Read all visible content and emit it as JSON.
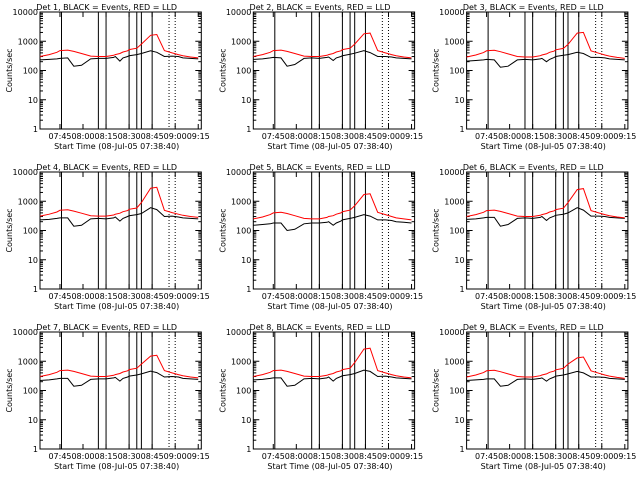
{
  "chart_data": [
    {
      "type": "line",
      "title": "Det 1, BLACK = Events, RED = LLD",
      "xlabel": "Start Time (08-Jul-05 07:38:40)",
      "ylabel": "Counts/sec",
      "x_ticks": [
        "07:45",
        "08:00",
        "08:15",
        "08:30",
        "08:45",
        "09:00",
        "09:15"
      ],
      "y_ticks": [
        "1",
        "10",
        "100",
        "1000",
        "10000"
      ],
      "ylim": [
        1,
        10000
      ],
      "yscale": "log",
      "x_minutes": [
        -7,
        -1,
        4,
        6,
        11,
        15,
        20,
        26,
        31,
        36,
        41,
        42,
        45,
        47,
        50,
        51,
        56,
        59,
        65,
        69,
        74,
        79,
        83,
        86,
        91,
        96
      ],
      "series": [
        {
          "name": "Events",
          "color": "#000000",
          "values": [
            230,
            240,
            250,
            260,
            270,
            140,
            150,
            250,
            260,
            260,
            280,
            300,
            210,
            270,
            300,
            320,
            350,
            380,
            470,
            420,
            300,
            310,
            300,
            270,
            260,
            250
          ]
        },
        {
          "name": "LLD",
          "color": "#ff0000",
          "values": [
            300,
            350,
            420,
            480,
            500,
            450,
            380,
            310,
            300,
            300,
            330,
            350,
            380,
            430,
            470,
            520,
            580,
            800,
            1600,
            1700,
            480,
            400,
            350,
            320,
            290,
            270
          ]
        }
      ],
      "vertical_lines_solid": [
        7,
        31,
        36,
        51,
        56,
        59,
        66
      ],
      "vertical_lines_dotted": [
        77,
        81
      ]
    },
    {
      "type": "line",
      "title": "Det 2, BLACK = Events, RED = LLD",
      "xlabel": "Start Time (08-Jul-05 07:38:40)",
      "ylabel": "Counts/sec",
      "x_ticks": [
        "07:45",
        "08:00",
        "08:15",
        "08:30",
        "08:45",
        "09:00",
        "09:15"
      ],
      "y_ticks": [
        "1",
        "10",
        "100",
        "1000",
        "10000"
      ],
      "ylim": [
        1,
        10000
      ],
      "yscale": "log",
      "x_minutes": [
        -7,
        -1,
        4,
        6,
        11,
        15,
        20,
        26,
        31,
        36,
        41,
        42,
        45,
        47,
        50,
        51,
        56,
        59,
        65,
        69,
        74,
        79,
        83,
        86,
        91,
        96
      ],
      "series": [
        {
          "name": "Events",
          "color": "#000000",
          "values": [
            240,
            250,
            270,
            280,
            270,
            140,
            160,
            260,
            270,
            260,
            280,
            290,
            220,
            270,
            300,
            320,
            360,
            390,
            480,
            410,
            300,
            300,
            290,
            270,
            260,
            250
          ]
        },
        {
          "name": "LLD",
          "color": "#ff0000",
          "values": [
            300,
            350,
            420,
            480,
            500,
            450,
            380,
            310,
            300,
            300,
            330,
            350,
            380,
            430,
            470,
            520,
            580,
            800,
            1800,
            1900,
            480,
            400,
            350,
            320,
            290,
            270
          ]
        }
      ],
      "vertical_lines_solid": [
        7,
        31,
        36,
        51,
        56,
        59,
        66
      ],
      "vertical_lines_dotted": [
        77,
        81
      ]
    },
    {
      "type": "line",
      "title": "Det 3, BLACK = Events, RED = LLD",
      "xlabel": "Start Time (08-Jul-05 07:38:40)",
      "ylabel": "Counts/sec",
      "x_ticks": [
        "07:45",
        "08:00",
        "08:15",
        "08:30",
        "08:45",
        "09:00",
        "09:15"
      ],
      "y_ticks": [
        "1",
        "10",
        "100",
        "1000",
        "10000"
      ],
      "ylim": [
        1,
        10000
      ],
      "yscale": "log",
      "x_minutes": [
        -7,
        -1,
        4,
        6,
        11,
        15,
        20,
        26,
        31,
        36,
        41,
        42,
        45,
        47,
        50,
        51,
        56,
        59,
        65,
        69,
        74,
        79,
        83,
        86,
        91,
        96
      ],
      "series": [
        {
          "name": "Events",
          "color": "#000000",
          "values": [
            210,
            220,
            230,
            240,
            230,
            130,
            140,
            230,
            240,
            230,
            250,
            260,
            200,
            240,
            280,
            300,
            330,
            350,
            420,
            380,
            280,
            280,
            270,
            250,
            240,
            230
          ]
        },
        {
          "name": "LLD",
          "color": "#ff0000",
          "values": [
            290,
            340,
            410,
            470,
            490,
            440,
            370,
            300,
            290,
            290,
            320,
            340,
            370,
            420,
            460,
            510,
            570,
            780,
            1900,
            2000,
            470,
            390,
            340,
            310,
            280,
            260
          ]
        }
      ],
      "vertical_lines_solid": [
        7,
        31,
        36,
        51,
        56,
        59,
        66
      ],
      "vertical_lines_dotted": [
        77,
        81
      ]
    },
    {
      "type": "line",
      "title": "Det 4, BLACK = Events, RED = LLD",
      "xlabel": "Start Time (08-Jul-05 07:38:40)",
      "ylabel": "Counts/sec",
      "x_ticks": [
        "07:45",
        "08:00",
        "08:15",
        "08:30",
        "08:45",
        "09:00",
        "09:15"
      ],
      "y_ticks": [
        "1",
        "10",
        "100",
        "1000",
        "10000"
      ],
      "ylim": [
        1,
        10000
      ],
      "yscale": "log",
      "x_minutes": [
        -7,
        -1,
        4,
        6,
        11,
        15,
        20,
        26,
        31,
        36,
        41,
        42,
        45,
        47,
        50,
        51,
        56,
        59,
        65,
        69,
        74,
        79,
        83,
        86,
        91,
        96
      ],
      "series": [
        {
          "name": "Events",
          "color": "#000000",
          "values": [
            230,
            240,
            260,
            270,
            270,
            140,
            150,
            250,
            260,
            250,
            270,
            290,
            210,
            260,
            300,
            320,
            350,
            380,
            600,
            520,
            300,
            310,
            290,
            270,
            260,
            250
          ]
        },
        {
          "name": "LLD",
          "color": "#ff0000",
          "values": [
            310,
            360,
            430,
            490,
            510,
            460,
            390,
            320,
            310,
            310,
            340,
            360,
            390,
            440,
            480,
            530,
            590,
            900,
            2800,
            3000,
            490,
            410,
            360,
            330,
            300,
            280
          ]
        }
      ],
      "vertical_lines_solid": [
        7,
        31,
        36,
        51,
        56,
        59,
        66
      ],
      "vertical_lines_dotted": [
        77,
        81
      ]
    },
    {
      "type": "line",
      "title": "Det 5, BLACK = Events, RED = LLD",
      "xlabel": "Start Time (08-Jul-05 07:38:40)",
      "ylabel": "Counts/sec",
      "x_ticks": [
        "07:45",
        "08:00",
        "08:15",
        "08:30",
        "08:45",
        "09:00",
        "09:15"
      ],
      "y_ticks": [
        "1",
        "10",
        "100",
        "1000",
        "10000"
      ],
      "ylim": [
        1,
        10000
      ],
      "yscale": "log",
      "x_minutes": [
        -7,
        -1,
        4,
        6,
        11,
        15,
        20,
        26,
        31,
        36,
        41,
        42,
        45,
        47,
        50,
        51,
        56,
        59,
        65,
        69,
        74,
        79,
        83,
        86,
        91,
        96
      ],
      "series": [
        {
          "name": "Events",
          "color": "#000000",
          "values": [
            150,
            160,
            170,
            180,
            180,
            100,
            110,
            170,
            180,
            180,
            190,
            200,
            150,
            180,
            210,
            230,
            260,
            280,
            350,
            310,
            230,
            230,
            220,
            200,
            190,
            180
          ]
        },
        {
          "name": "LLD",
          "color": "#ff0000",
          "values": [
            250,
            290,
            350,
            400,
            420,
            380,
            320,
            260,
            250,
            250,
            280,
            300,
            320,
            360,
            400,
            440,
            500,
            700,
            1700,
            1800,
            420,
            350,
            300,
            270,
            250,
            230
          ]
        }
      ],
      "vertical_lines_solid": [
        7,
        31,
        36,
        51,
        56,
        59,
        66
      ],
      "vertical_lines_dotted": [
        77,
        81
      ]
    },
    {
      "type": "line",
      "title": "Det 6, BLACK = Events, RED = LLD",
      "xlabel": "Start Time (08-Jul-05 07:38:40)",
      "ylabel": "Counts/sec",
      "x_ticks": [
        "07:45",
        "08:00",
        "08:15",
        "08:30",
        "08:45",
        "09:00",
        "09:15"
      ],
      "y_ticks": [
        "1",
        "10",
        "100",
        "1000",
        "10000"
      ],
      "ylim": [
        1,
        10000
      ],
      "yscale": "log",
      "x_minutes": [
        -7,
        -1,
        4,
        6,
        11,
        15,
        20,
        26,
        31,
        36,
        41,
        42,
        45,
        47,
        50,
        51,
        56,
        59,
        65,
        69,
        74,
        79,
        83,
        86,
        91,
        96
      ],
      "series": [
        {
          "name": "Events",
          "color": "#000000",
          "values": [
            240,
            250,
            270,
            280,
            280,
            140,
            160,
            260,
            270,
            260,
            280,
            300,
            220,
            270,
            310,
            330,
            360,
            400,
            600,
            500,
            310,
            310,
            300,
            280,
            270,
            260
          ]
        },
        {
          "name": "LLD",
          "color": "#ff0000",
          "values": [
            300,
            350,
            420,
            480,
            500,
            450,
            380,
            310,
            300,
            300,
            330,
            350,
            380,
            430,
            470,
            520,
            580,
            900,
            2500,
            2700,
            480,
            400,
            350,
            320,
            290,
            270
          ]
        }
      ],
      "vertical_lines_solid": [
        7,
        31,
        36,
        51,
        56,
        59,
        66
      ],
      "vertical_lines_dotted": [
        77,
        81
      ]
    },
    {
      "type": "line",
      "title": "Det 7, BLACK = Events, RED = LLD",
      "xlabel": "Start Time (08-Jul-05 07:38:40)",
      "ylabel": "Counts/sec",
      "x_ticks": [
        "07:45",
        "08:00",
        "08:15",
        "08:30",
        "08:45",
        "09:00",
        "09:15"
      ],
      "y_ticks": [
        "1",
        "10",
        "100",
        "1000",
        "10000"
      ],
      "ylim": [
        1,
        10000
      ],
      "yscale": "log",
      "x_minutes": [
        -7,
        -1,
        4,
        6,
        11,
        15,
        20,
        26,
        31,
        36,
        41,
        42,
        45,
        47,
        50,
        51,
        56,
        59,
        65,
        69,
        74,
        79,
        83,
        86,
        91,
        96
      ],
      "series": [
        {
          "name": "Events",
          "color": "#000000",
          "values": [
            220,
            230,
            250,
            260,
            260,
            140,
            150,
            240,
            250,
            250,
            270,
            280,
            210,
            260,
            290,
            310,
            340,
            370,
            460,
            410,
            290,
            300,
            290,
            260,
            250,
            240
          ]
        },
        {
          "name": "LLD",
          "color": "#ff0000",
          "values": [
            300,
            350,
            420,
            480,
            500,
            450,
            380,
            310,
            300,
            300,
            330,
            350,
            380,
            430,
            470,
            520,
            580,
            800,
            1500,
            1600,
            480,
            400,
            350,
            320,
            290,
            270
          ]
        }
      ],
      "vertical_lines_solid": [
        7,
        31,
        36,
        51,
        56,
        59,
        66
      ],
      "vertical_lines_dotted": [
        77,
        81
      ]
    },
    {
      "type": "line",
      "title": "Det 8, BLACK = Events, RED = LLD",
      "xlabel": "Start Time (08-Jul-05 07:38:40)",
      "ylabel": "Counts/sec",
      "x_ticks": [
        "07:45",
        "08:00",
        "08:15",
        "08:30",
        "08:45",
        "09:00",
        "09:15"
      ],
      "y_ticks": [
        "1",
        "10",
        "100",
        "1000",
        "10000"
      ],
      "ylim": [
        1,
        10000
      ],
      "yscale": "log",
      "x_minutes": [
        -7,
        -1,
        4,
        6,
        11,
        15,
        20,
        26,
        31,
        36,
        41,
        42,
        45,
        47,
        50,
        51,
        56,
        59,
        65,
        69,
        74,
        79,
        83,
        86,
        91,
        96
      ],
      "series": [
        {
          "name": "Events",
          "color": "#000000",
          "values": [
            230,
            240,
            260,
            270,
            270,
            140,
            150,
            250,
            260,
            250,
            270,
            290,
            210,
            260,
            300,
            320,
            350,
            380,
            500,
            450,
            300,
            310,
            290,
            270,
            260,
            250
          ]
        },
        {
          "name": "LLD",
          "color": "#ff0000",
          "values": [
            300,
            350,
            420,
            480,
            500,
            450,
            380,
            310,
            300,
            300,
            330,
            350,
            380,
            430,
            470,
            520,
            580,
            900,
            2600,
            2800,
            480,
            400,
            350,
            320,
            290,
            270
          ]
        }
      ],
      "vertical_lines_solid": [
        7,
        31,
        36,
        51,
        56,
        59,
        66
      ],
      "vertical_lines_dotted": [
        77,
        81
      ]
    },
    {
      "type": "line",
      "title": "Det 9, BLACK = Events, RED = LLD",
      "xlabel": "Start Time (08-Jul-05 07:38:40)",
      "ylabel": "Counts/sec",
      "x_ticks": [
        "07:45",
        "08:00",
        "08:15",
        "08:30",
        "08:45",
        "09:00",
        "09:15"
      ],
      "y_ticks": [
        "1",
        "10",
        "100",
        "1000",
        "10000"
      ],
      "ylim": [
        1,
        10000
      ],
      "yscale": "log",
      "x_minutes": [
        -7,
        -1,
        4,
        6,
        11,
        15,
        20,
        26,
        31,
        36,
        41,
        42,
        45,
        47,
        50,
        51,
        56,
        59,
        65,
        69,
        74,
        79,
        83,
        86,
        91,
        96
      ],
      "series": [
        {
          "name": "Events",
          "color": "#000000",
          "values": [
            220,
            230,
            240,
            250,
            250,
            140,
            150,
            240,
            250,
            240,
            260,
            270,
            210,
            250,
            290,
            310,
            340,
            370,
            450,
            400,
            290,
            290,
            280,
            260,
            250,
            240
          ]
        },
        {
          "name": "LLD",
          "color": "#ff0000",
          "values": [
            290,
            340,
            410,
            470,
            490,
            440,
            370,
            300,
            290,
            290,
            320,
            340,
            370,
            420,
            460,
            510,
            570,
            800,
            1300,
            1400,
            470,
            390,
            340,
            310,
            280,
            260
          ]
        }
      ],
      "vertical_lines_solid": [
        7,
        31,
        36,
        51,
        56,
        59,
        66
      ],
      "vertical_lines_dotted": [
        77,
        81
      ]
    }
  ]
}
